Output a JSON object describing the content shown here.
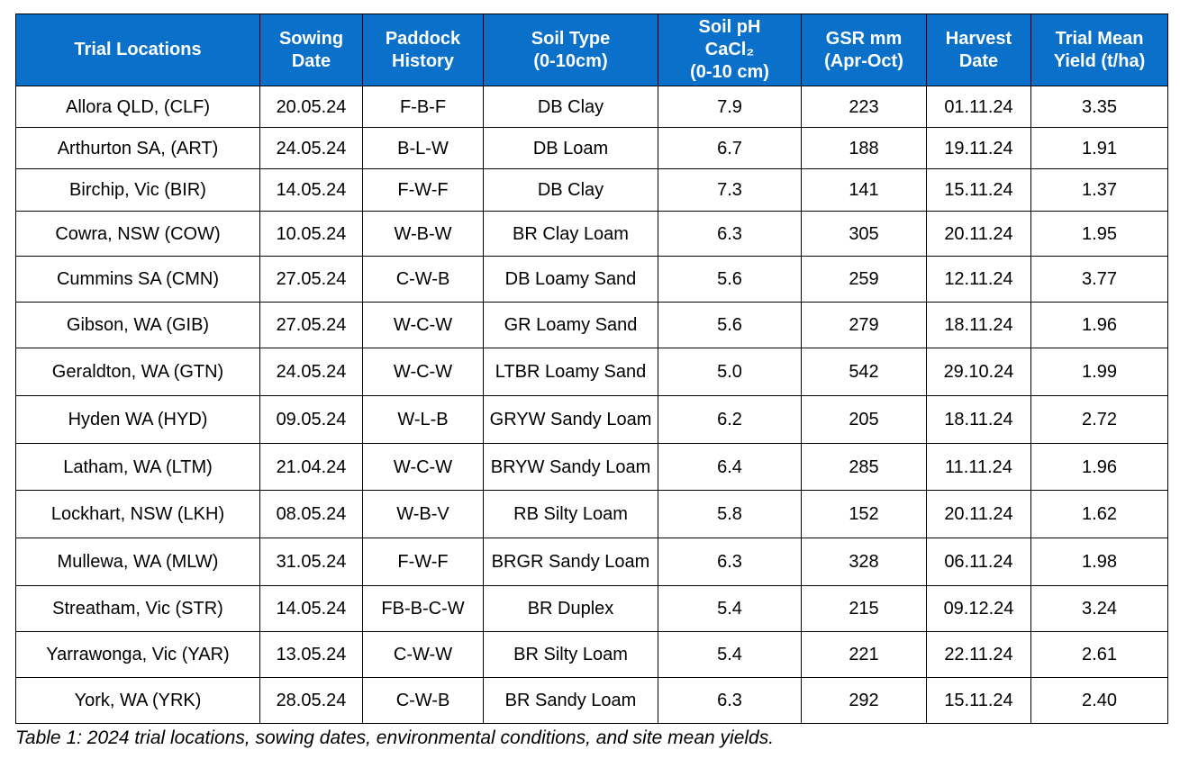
{
  "table": {
    "headers": [
      {
        "lines": [
          "Trial Locations"
        ]
      },
      {
        "lines": [
          "Sowing",
          "Date"
        ]
      },
      {
        "lines": [
          "Paddock",
          "History"
        ]
      },
      {
        "lines": [
          "Soil Type",
          "(0-10cm)"
        ]
      },
      {
        "lines": [
          "Soil pH",
          "CaCl₂",
          "(0-10 cm)"
        ]
      },
      {
        "lines": [
          "GSR mm",
          "(Apr-Oct)"
        ]
      },
      {
        "lines": [
          "Harvest",
          "Date"
        ]
      },
      {
        "lines": [
          "Trial Mean",
          "Yield (t/ha)"
        ]
      }
    ],
    "rows": [
      {
        "location": "Allora QLD, (CLF)",
        "sowing_date": "20.05.24",
        "paddock_history": "F-B-F",
        "soil_type": "DB Clay",
        "soil_ph": "7.9",
        "gsr_mm": "223",
        "harvest_date": "01.11.24",
        "mean_yield": "3.35"
      },
      {
        "location": "Arthurton SA, (ART)",
        "sowing_date": "24.05.24",
        "paddock_history": "B-L-W",
        "soil_type": "DB Loam",
        "soil_ph": "6.7",
        "gsr_mm": "188",
        "harvest_date": "19.11.24",
        "mean_yield": "1.91"
      },
      {
        "location": "Birchip, Vic (BIR)",
        "sowing_date": "14.05.24",
        "paddock_history": "F-W-F",
        "soil_type": "DB Clay",
        "soil_ph": "7.3",
        "gsr_mm": "141",
        "harvest_date": "15.11.24",
        "mean_yield": "1.37"
      },
      {
        "location": "Cowra, NSW (COW)",
        "sowing_date": "10.05.24",
        "paddock_history": "W-B-W",
        "soil_type": "BR Clay Loam",
        "soil_ph": "6.3",
        "gsr_mm": "305",
        "harvest_date": "20.11.24",
        "mean_yield": "1.95"
      },
      {
        "location": "Cummins SA (CMN)",
        "sowing_date": "27.05.24",
        "paddock_history": "C-W-B",
        "soil_type": "DB Loamy Sand",
        "soil_ph": "5.6",
        "gsr_mm": "259",
        "harvest_date": "12.11.24",
        "mean_yield": "3.77"
      },
      {
        "location": "Gibson, WA (GIB)",
        "sowing_date": "27.05.24",
        "paddock_history": "W-C-W",
        "soil_type": "GR Loamy Sand",
        "soil_ph": "5.6",
        "gsr_mm": "279",
        "harvest_date": "18.11.24",
        "mean_yield": "1.96"
      },
      {
        "location": "Geraldton, WA (GTN)",
        "sowing_date": "24.05.24",
        "paddock_history": "W-C-W",
        "soil_type": "LTBR Loamy Sand",
        "soil_ph": "5.0",
        "gsr_mm": "542",
        "harvest_date": "29.10.24",
        "mean_yield": "1.99"
      },
      {
        "location": "Hyden WA (HYD)",
        "sowing_date": "09.05.24",
        "paddock_history": "W-L-B",
        "soil_type": "GRYW Sandy Loam",
        "soil_ph": "6.2",
        "gsr_mm": "205",
        "harvest_date": "18.11.24",
        "mean_yield": "2.72"
      },
      {
        "location": "Latham, WA (LTM)",
        "sowing_date": "21.04.24",
        "paddock_history": "W-C-W",
        "soil_type": "BRYW Sandy Loam",
        "soil_ph": "6.4",
        "gsr_mm": "285",
        "harvest_date": "11.11.24",
        "mean_yield": "1.96"
      },
      {
        "location": "Lockhart, NSW (LKH)",
        "sowing_date": "08.05.24",
        "paddock_history": "W-B-V",
        "soil_type": "RB Silty Loam",
        "soil_ph": "5.8",
        "gsr_mm": "152",
        "harvest_date": "20.11.24",
        "mean_yield": "1.62"
      },
      {
        "location": "Mullewa, WA (MLW)",
        "sowing_date": "31.05.24",
        "paddock_history": "F-W-F",
        "soil_type": "BRGR Sandy Loam",
        "soil_ph": "6.3",
        "gsr_mm": "328",
        "harvest_date": "06.11.24",
        "mean_yield": "1.98"
      },
      {
        "location": "Streatham, Vic (STR)",
        "sowing_date": "14.05.24",
        "paddock_history": "FB-B-C-W",
        "soil_type": "BR Duplex",
        "soil_ph": "5.4",
        "gsr_mm": "215",
        "harvest_date": "09.12.24",
        "mean_yield": "3.24"
      },
      {
        "location": "Yarrawonga, Vic (YAR)",
        "sowing_date": "13.05.24",
        "paddock_history": "C-W-W",
        "soil_type": "BR Silty Loam",
        "soil_ph": "5.4",
        "gsr_mm": "221",
        "harvest_date": "22.11.24",
        "mean_yield": "2.61"
      },
      {
        "location": "York, WA (YRK)",
        "sowing_date": "28.05.24",
        "paddock_history": "C-W-B",
        "soil_type": "BR Sandy Loam",
        "soil_ph": "6.3",
        "gsr_mm": "292",
        "harvest_date": "15.11.24",
        "mean_yield": "2.40"
      }
    ]
  },
  "caption": "Table 1: 2024 trial locations, sowing dates, environmental conditions, and site mean yields.",
  "colors": {
    "header_background": "#0a70c9",
    "header_text": "#ffffff",
    "border": "#000000"
  }
}
